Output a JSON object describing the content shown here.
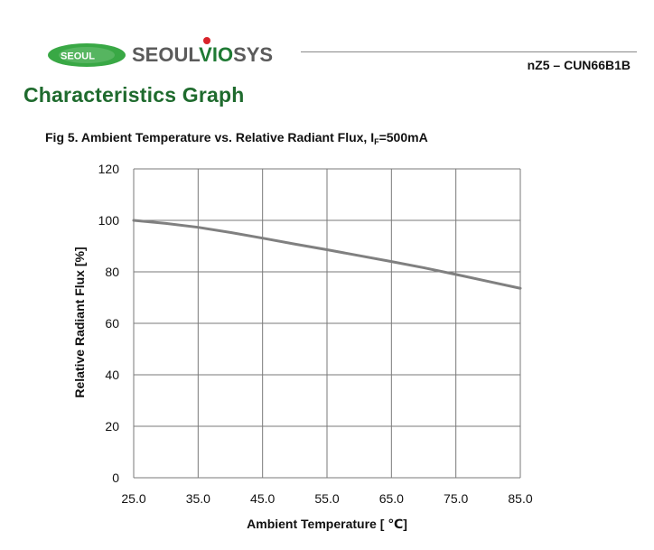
{
  "header": {
    "logo_badge_text": "SEOUL",
    "logo_word_a": "SEOUL",
    "logo_word_b": "VIO",
    "logo_word_c": "SYS",
    "part_number": "nZ5 – CUN66B1B",
    "logo_colors": {
      "green": "#39a845",
      "dark_green": "#1f7a34",
      "gray": "#5b5b5b",
      "red": "#d8232a"
    }
  },
  "section_title": "Characteristics Graph",
  "figure": {
    "title_main": "Fig 5. Ambient Temperature vs. Relative Radiant Flux, I",
    "title_sub": "F",
    "title_tail": "=500mA"
  },
  "chart_data": {
    "type": "line",
    "title": "Fig 5. Ambient Temperature vs. Relative Radiant Flux, IF=500mA",
    "xlabel": "Ambient Temperature [ ℃]",
    "ylabel": "Relative Radiant Flux [%]",
    "xlim": [
      25,
      85
    ],
    "ylim": [
      0,
      120
    ],
    "x_ticks": [
      25,
      35,
      45,
      55,
      65,
      75,
      85
    ],
    "x_tick_labels": [
      "25.0",
      "35.0",
      "45.0",
      "55.0",
      "65.0",
      "75.0",
      "85.0"
    ],
    "y_ticks": [
      0,
      20,
      40,
      60,
      80,
      100,
      120
    ],
    "y_tick_labels": [
      "0",
      "20",
      "40",
      "60",
      "80",
      "100",
      "120"
    ],
    "grid": true,
    "series": [
      {
        "color": "#808080",
        "x": [
          25,
          30,
          35,
          40,
          45,
          50,
          55,
          60,
          65,
          70,
          75,
          80,
          85
        ],
        "y": [
          100,
          98.8,
          97.3,
          95.3,
          93.1,
          90.8,
          88.6,
          86.3,
          84.0,
          81.6,
          79.0,
          76.3,
          73.6
        ]
      }
    ]
  }
}
